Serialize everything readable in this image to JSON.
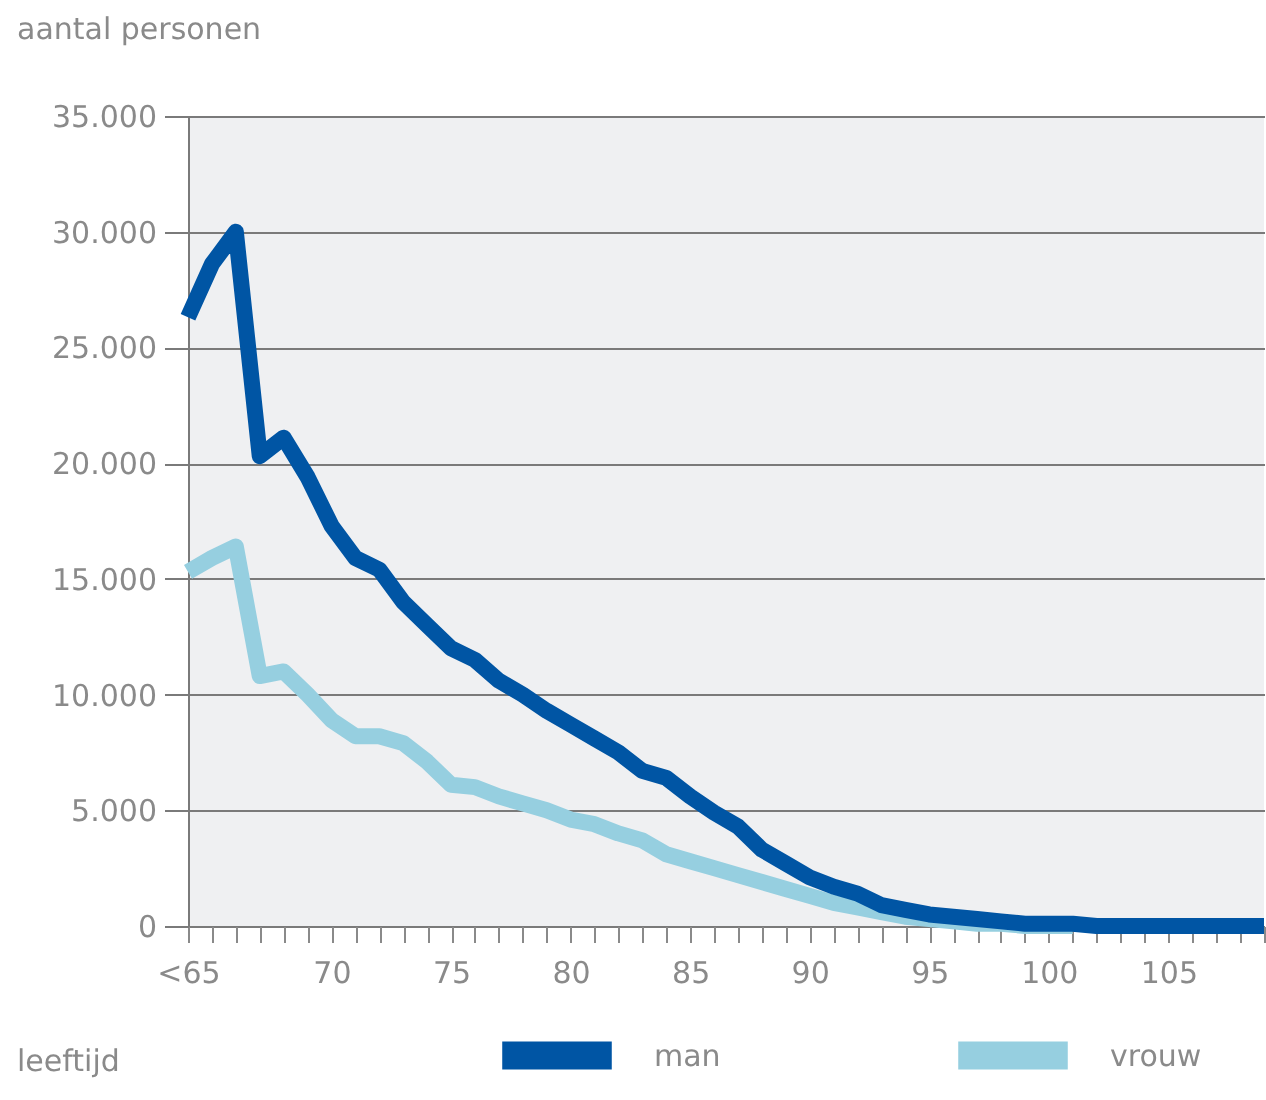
{
  "chart_data": {
    "type": "line",
    "ylabel": "aantal personen",
    "xlabel": "leeftijd",
    "categories": [
      "<65",
      null,
      null,
      null,
      null,
      null,
      "70",
      null,
      null,
      null,
      null,
      "75",
      null,
      null,
      null,
      null,
      "80",
      null,
      null,
      null,
      null,
      "85",
      null,
      null,
      null,
      null,
      "90",
      null,
      null,
      null,
      null,
      "95",
      null,
      null,
      null,
      null,
      "100",
      null,
      null,
      null,
      null,
      "105",
      null,
      null,
      null,
      null
    ],
    "series": [
      {
        "name": "man",
        "color": "#0055a4",
        "values": [
          26300,
          28600,
          30000,
          20300,
          21100,
          19400,
          17300,
          15900,
          15400,
          14000,
          13000,
          12000,
          11500,
          10600,
          10000,
          9300,
          8700,
          8100,
          7500,
          6700,
          6400,
          5600,
          4900,
          4300,
          3300,
          2700,
          2100,
          1700,
          1400,
          900,
          700,
          500,
          400,
          300,
          200,
          100,
          100,
          100,
          0,
          0,
          0,
          0,
          0,
          0,
          0,
          0
        ]
      },
      {
        "name": "vrouw",
        "color": "#96cfe0",
        "values": [
          15300,
          15900,
          16400,
          10800,
          11000,
          10000,
          8900,
          8200,
          8200,
          7900,
          7100,
          6100,
          6000,
          5600,
          5300,
          5000,
          4600,
          4400,
          4000,
          3700,
          3100,
          2800,
          2500,
          2200,
          1900,
          1600,
          1300,
          1000,
          800,
          600,
          400,
          300,
          200,
          100,
          100,
          0,
          0,
          0,
          null,
          null,
          null,
          null,
          null,
          null,
          null,
          null
        ]
      }
    ],
    "ylim": [
      0,
      35000
    ],
    "yticks": [
      {
        "value": 0,
        "label": "0"
      },
      {
        "value": 5000,
        "label": "5.000"
      },
      {
        "value": 10000,
        "label": "10.000"
      },
      {
        "value": 15000,
        "label": "15.000"
      },
      {
        "value": 20000,
        "label": "20.000"
      },
      {
        "value": 25000,
        "label": "25.000"
      },
      {
        "value": 30000,
        "label": "30.000"
      },
      {
        "value": 35000,
        "label": "35.000"
      }
    ],
    "grid": "y",
    "legend": "bottom",
    "marker": "none",
    "line_style": "solid"
  }
}
